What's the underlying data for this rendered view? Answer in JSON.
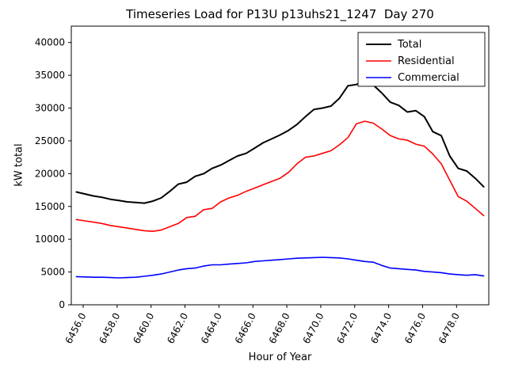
{
  "chart_data": {
    "type": "line",
    "title": "Timeseries Load for P13U p13uhs21_1247  Day 270",
    "xlabel": "Hour of Year",
    "ylabel": "kW total",
    "xlim": [
      6455.3,
      6479.9
    ],
    "ylim": [
      0,
      42500
    ],
    "grid": false,
    "legend_position": "upper right",
    "xticks": [
      6456,
      6458,
      6460,
      6462,
      6464,
      6466,
      6468,
      6470,
      6472,
      6474,
      6476,
      6478
    ],
    "xtick_labels": [
      "6456.0",
      "6458.0",
      "6460.0",
      "6462.0",
      "6464.0",
      "6466.0",
      "6468.0",
      "6470.0",
      "6472.0",
      "6474.0",
      "6476.0",
      "6478.0"
    ],
    "yticks": [
      0,
      5000,
      10000,
      15000,
      20000,
      25000,
      30000,
      35000,
      40000
    ],
    "x": [
      6455.6,
      6456.1,
      6456.6,
      6457.1,
      6457.6,
      6458.1,
      6458.6,
      6459.1,
      6459.6,
      6460.1,
      6460.6,
      6461.1,
      6461.6,
      6462.1,
      6462.6,
      6463.1,
      6463.6,
      6464.1,
      6464.6,
      6465.1,
      6465.6,
      6466.1,
      6466.6,
      6467.1,
      6467.6,
      6468.1,
      6468.6,
      6469.1,
      6469.6,
      6470.1,
      6470.6,
      6471.1,
      6471.6,
      6472.1,
      6472.6,
      6473.1,
      6473.6,
      6474.1,
      6474.6,
      6475.1,
      6475.6,
      6476.1,
      6476.6,
      6477.1,
      6477.6,
      6478.1,
      6478.6,
      6479.1,
      6479.6
    ],
    "series": [
      {
        "name": "Total",
        "color": "#000000",
        "linewidth": 2,
        "values": [
          17200,
          16900,
          16600,
          16400,
          16100,
          15900,
          15700,
          15600,
          15500,
          15800,
          16300,
          17300,
          18400,
          18700,
          19600,
          20000,
          20800,
          21300,
          22000,
          22700,
          23100,
          23900,
          24700,
          25300,
          25900,
          26600,
          27500,
          28700,
          29800,
          30000,
          30300,
          31500,
          33400,
          33600,
          34100,
          33500,
          32300,
          30900,
          30400,
          29400,
          29600,
          28700,
          26400,
          25800,
          22700,
          20800,
          20400,
          19300,
          18000
        ]
      },
      {
        "name": "Residential",
        "color": "#ff0000",
        "linewidth": 1.6,
        "values": [
          13000,
          12800,
          12600,
          12400,
          12100,
          11900,
          11700,
          11500,
          11300,
          11200,
          11400,
          11900,
          12400,
          13300,
          13500,
          14500,
          14700,
          15700,
          16300,
          16700,
          17300,
          17800,
          18300,
          18800,
          19300,
          20200,
          21500,
          22500,
          22700,
          23100,
          23500,
          24400,
          25500,
          27600,
          28000,
          27700,
          26800,
          25800,
          25300,
          25100,
          24500,
          24200,
          23000,
          21500,
          19000,
          16500,
          15800,
          14700,
          13600
        ]
      },
      {
        "name": "Commercial",
        "color": "#0000ff",
        "linewidth": 1.6,
        "values": [
          4300,
          4250,
          4200,
          4200,
          4150,
          4100,
          4150,
          4200,
          4350,
          4500,
          4700,
          5000,
          5300,
          5500,
          5600,
          5900,
          6100,
          6100,
          6200,
          6300,
          6400,
          6600,
          6700,
          6800,
          6900,
          7000,
          7100,
          7150,
          7200,
          7250,
          7200,
          7150,
          7000,
          6800,
          6600,
          6500,
          6000,
          5600,
          5500,
          5400,
          5300,
          5100,
          5000,
          4900,
          4700,
          4600,
          4500,
          4600,
          4400
        ]
      }
    ]
  }
}
